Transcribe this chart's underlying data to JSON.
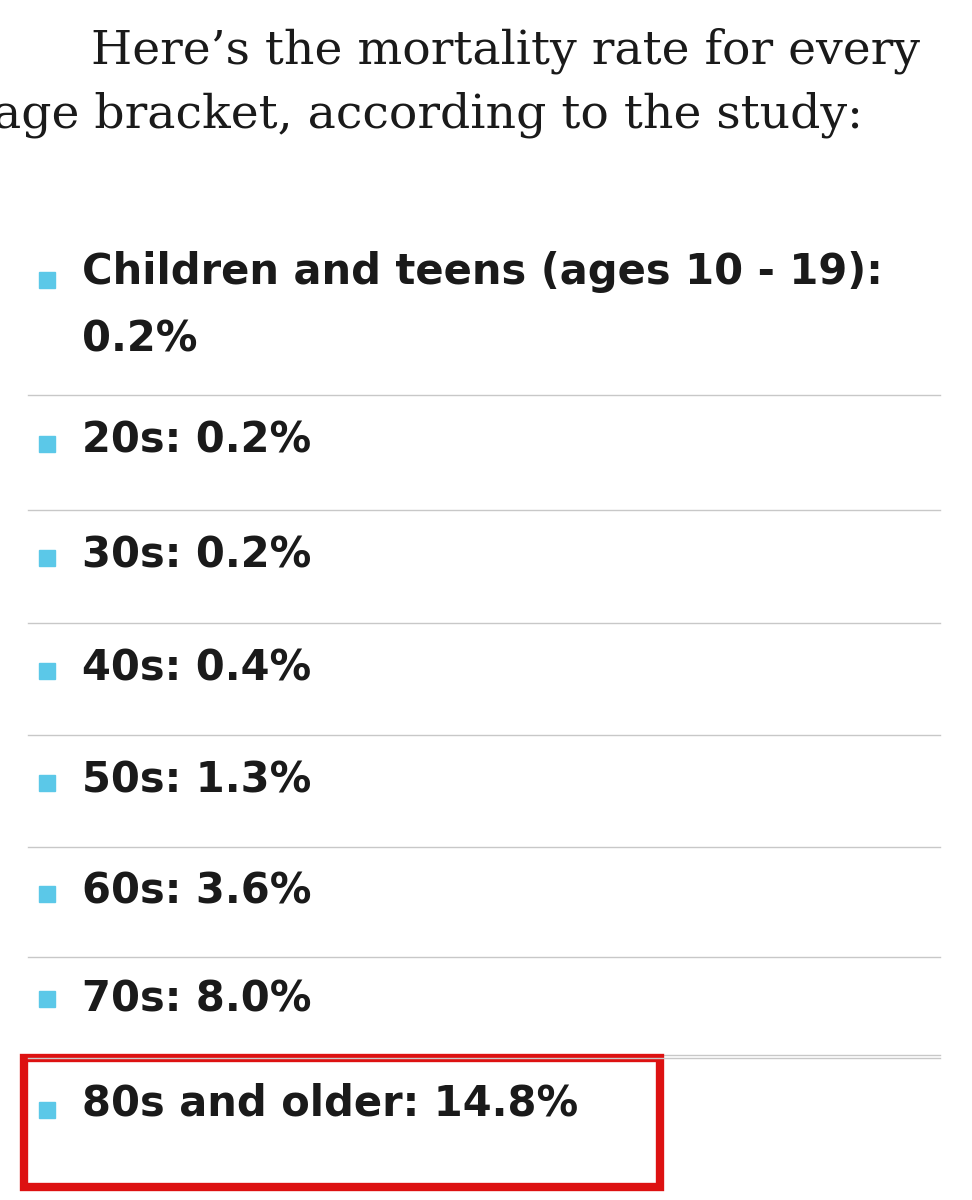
{
  "title_line1": "Here’s the mortality rate for every",
  "title_line2": "age bracket, according to the study:",
  "background_color": "#ffffff",
  "title_color": "#1a1a1a",
  "title_fontsize": 34,
  "items": [
    {
      "label_line1": "Children and teens (ages 10 - 19):",
      "label_line2": "0.2%",
      "two_lines": true
    },
    {
      "label_line1": "20s: 0.2%",
      "label_line2": "",
      "two_lines": false
    },
    {
      "label_line1": "30s: 0.2%",
      "label_line2": "",
      "two_lines": false
    },
    {
      "label_line1": "40s: 0.4%",
      "label_line2": "",
      "two_lines": false
    },
    {
      "label_line1": "50s: 1.3%",
      "label_line2": "",
      "two_lines": false
    },
    {
      "label_line1": "60s: 3.6%",
      "label_line2": "",
      "two_lines": false
    },
    {
      "label_line1": "70s: 8.0%",
      "label_line2": "",
      "two_lines": false
    },
    {
      "label_line1": "80s and older: 14.8%",
      "label_line2": "",
      "two_lines": false
    }
  ],
  "item_fontsize": 30,
  "bullet_color": "#5bc8e8",
  "text_color": "#1a1a1a",
  "divider_color": "#c8c8c8",
  "highlight_last": true,
  "highlight_color": "#dd1111",
  "highlight_linewidth": 6,
  "fig_width": 9.72,
  "fig_height": 12.0,
  "dpi": 100
}
